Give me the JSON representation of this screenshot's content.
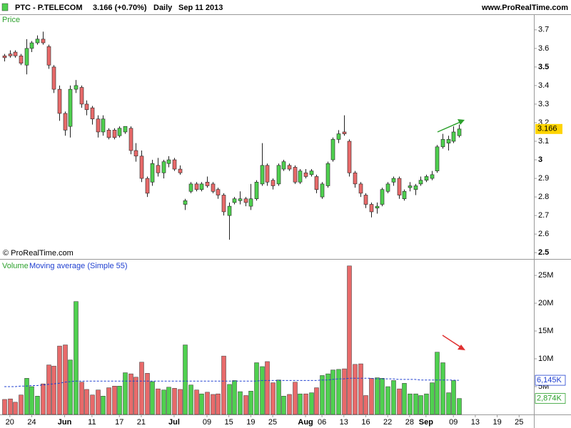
{
  "header": {
    "symbol": "PTC - P.TELECOM",
    "quote": "3.166 (+0.70%)",
    "period": "Daily",
    "date": "Sep 11 2013",
    "site": "www.ProRealTime.com"
  },
  "chart_data": [
    {
      "type": "candlestick",
      "title": "Price",
      "credit": "© ProRealTime.com",
      "up_color": "#4fd04f",
      "down_color": "#e86a6a",
      "xlim": [
        -0.8,
        96.7
      ],
      "xticks": [
        {
          "value": 1,
          "label": "20"
        },
        {
          "value": 5,
          "label": "24"
        },
        {
          "value": 11,
          "label": "Jun"
        },
        {
          "value": 16,
          "label": "11"
        },
        {
          "value": 21,
          "label": "17"
        },
        {
          "value": 25,
          "label": "21"
        },
        {
          "value": 31,
          "label": "Jul"
        },
        {
          "value": 37,
          "label": "09"
        },
        {
          "value": 41,
          "label": "15"
        },
        {
          "value": 45,
          "label": "19"
        },
        {
          "value": 49,
          "label": "25"
        },
        {
          "value": 55,
          "label": "Aug"
        },
        {
          "value": 58,
          "label": "06"
        },
        {
          "value": 62,
          "label": "13"
        },
        {
          "value": 66,
          "label": "16"
        },
        {
          "value": 70,
          "label": "22"
        },
        {
          "value": 74,
          "label": "28"
        },
        {
          "value": 77,
          "label": "Sep"
        },
        {
          "value": 82,
          "label": "09"
        },
        {
          "value": 86,
          "label": "13"
        },
        {
          "value": 90,
          "label": "19"
        },
        {
          "value": 94,
          "label": "25"
        }
      ],
      "ylim": [
        2.47,
        3.78
      ],
      "yticks": [
        2.5,
        2.6,
        2.7,
        2.8,
        2.9,
        3,
        3.1,
        3.2,
        3.3,
        3.4,
        3.5,
        3.6,
        3.7
      ],
      "open": [
        3.56,
        3.57,
        3.58,
        3.56,
        3.51,
        3.6,
        3.63,
        3.65,
        3.61,
        3.5,
        3.38,
        3.25,
        3.18,
        3.38,
        3.39,
        3.3,
        3.28,
        3.22,
        3.15,
        3.16,
        3.16,
        3.13,
        3.15,
        3.17,
        3.05,
        3.02,
        2.9,
        2.88,
        2.97,
        2.93,
        2.98,
        3.0,
        2.95,
        2.76,
        2.83,
        2.87,
        2.84,
        2.88,
        2.87,
        2.84,
        2.81,
        2.7,
        2.77,
        2.78,
        2.79,
        2.75,
        2.79,
        2.87,
        2.97,
        2.89,
        2.87,
        2.95,
        2.97,
        2.96,
        2.88,
        2.93,
        2.92,
        2.91,
        2.8,
        2.86,
        3.0,
        3.11,
        3.15,
        3.1,
        2.93,
        2.87,
        2.81,
        2.76,
        2.74,
        2.76,
        2.83,
        2.88,
        2.9,
        2.79,
        2.85,
        2.84,
        2.87,
        2.89,
        2.9,
        2.94,
        3.07,
        3.09,
        3.1,
        3.13
      ],
      "high": [
        3.57,
        3.59,
        3.59,
        3.57,
        3.65,
        3.64,
        3.67,
        3.69,
        3.62,
        3.51,
        3.4,
        3.26,
        3.4,
        3.43,
        3.4,
        3.32,
        3.29,
        3.24,
        3.24,
        3.17,
        3.17,
        3.18,
        3.18,
        3.18,
        3.09,
        3.05,
        2.91,
        3.0,
        3.01,
        3.0,
        3.02,
        3.01,
        2.97,
        2.79,
        2.88,
        2.88,
        2.88,
        2.91,
        2.88,
        2.85,
        2.82,
        2.77,
        2.8,
        2.83,
        2.8,
        2.87,
        2.89,
        3.09,
        2.98,
        2.9,
        2.98,
        3.0,
        2.98,
        2.97,
        2.95,
        2.95,
        2.95,
        2.92,
        2.88,
        2.99,
        3.12,
        3.16,
        3.24,
        3.11,
        2.94,
        2.88,
        2.82,
        2.77,
        2.77,
        2.85,
        2.88,
        2.91,
        2.91,
        2.84,
        2.88,
        2.87,
        2.91,
        2.92,
        2.94,
        3.08,
        3.14,
        3.13,
        3.18,
        3.19
      ],
      "low": [
        3.53,
        3.55,
        3.55,
        3.51,
        3.46,
        3.58,
        3.62,
        3.62,
        3.49,
        3.36,
        3.21,
        3.13,
        3.12,
        3.36,
        3.28,
        3.24,
        3.19,
        3.12,
        3.13,
        3.11,
        3.11,
        3.12,
        3.14,
        3.03,
        2.99,
        2.88,
        2.8,
        2.86,
        2.91,
        2.9,
        2.96,
        2.94,
        2.92,
        2.73,
        2.82,
        2.83,
        2.83,
        2.85,
        2.82,
        2.79,
        2.7,
        2.57,
        2.76,
        2.76,
        2.75,
        2.73,
        2.78,
        2.86,
        2.86,
        2.84,
        2.86,
        2.94,
        2.94,
        2.87,
        2.87,
        2.9,
        2.91,
        2.82,
        2.79,
        2.85,
        2.99,
        3.09,
        3.13,
        2.91,
        2.85,
        2.8,
        2.74,
        2.69,
        2.71,
        2.75,
        2.82,
        2.86,
        2.79,
        2.78,
        2.83,
        2.81,
        2.86,
        2.88,
        2.89,
        2.93,
        3.06,
        3.05,
        3.09,
        3.12
      ],
      "close": [
        3.55,
        3.56,
        3.56,
        3.52,
        3.6,
        3.63,
        3.65,
        3.63,
        3.51,
        3.38,
        3.25,
        3.16,
        3.38,
        3.4,
        3.3,
        3.27,
        3.22,
        3.15,
        3.22,
        3.12,
        3.12,
        3.17,
        3.18,
        3.05,
        3.02,
        2.9,
        2.82,
        2.98,
        2.93,
        2.99,
        3.0,
        2.95,
        2.93,
        2.78,
        2.87,
        2.84,
        2.87,
        2.86,
        2.83,
        2.81,
        2.72,
        2.75,
        2.79,
        2.79,
        2.77,
        2.79,
        2.88,
        2.97,
        2.88,
        2.86,
        2.97,
        2.99,
        2.95,
        2.88,
        2.94,
        2.91,
        2.94,
        2.84,
        2.87,
        2.98,
        3.11,
        3.14,
        3.14,
        2.93,
        2.87,
        2.82,
        2.76,
        2.72,
        2.75,
        2.84,
        2.87,
        2.9,
        2.81,
        2.83,
        2.86,
        2.86,
        2.89,
        2.91,
        2.92,
        3.07,
        3.11,
        3.11,
        3.15,
        3.166
      ]
    },
    {
      "type": "bar",
      "title": "Volume",
      "subtitle": "Moving average (Simple 55)",
      "xlim": [
        -0.8,
        96.7
      ],
      "ylim": [
        0,
        27.7
      ],
      "yticks": [
        {
          "value": 5,
          "label": "5M"
        },
        {
          "value": 10,
          "label": "10M"
        },
        {
          "value": 15,
          "label": "15M"
        },
        {
          "value": 20,
          "label": "20M"
        },
        {
          "value": 25,
          "label": "25M"
        }
      ],
      "series": [
        {
          "name": "Volume",
          "color": "#4fd04f",
          "label_color": "#2ca02c",
          "values": [
            2.7,
            2.8,
            2.2,
            3.5,
            6.5,
            5.0,
            3.3,
            5.5,
            8.9,
            8.7,
            12.3,
            12.5,
            9.8,
            20.3,
            5.8,
            4.5,
            3.5,
            4.4,
            3.3,
            4.8,
            5.1,
            5.1,
            7.5,
            7.3,
            6.7,
            9.4,
            7.4,
            5.9,
            4.6,
            4.4,
            4.9,
            4.7,
            4.5,
            12.5,
            5.3,
            4.4,
            3.7,
            4.0,
            3.6,
            3.7,
            10.5,
            5.4,
            6.1,
            4.1,
            3.4,
            4.2,
            9.3,
            8.6,
            9.5,
            5.7,
            6.2,
            3.3,
            3.6,
            5.8,
            3.7,
            3.7,
            3.9,
            4.8,
            7.0,
            7.3,
            8.0,
            8.1,
            8.2,
            26.7,
            9.0,
            9.1,
            3.4,
            6.5,
            6.6,
            6.5,
            5.0,
            6.1,
            4.6,
            5.6,
            3.7,
            3.7,
            3.4,
            3.7,
            5.7,
            11.2,
            9.3,
            3.9,
            6.1,
            2.874
          ],
          "last_label": "2,874K"
        },
        {
          "name": "Moving average (Simple 55)",
          "color": "#1f3fd0",
          "type": "line",
          "values": [
            5.0,
            5.0,
            5.0,
            5.1,
            5.1,
            5.2,
            5.2,
            5.3,
            5.4,
            5.5,
            5.6,
            5.8,
            5.9,
            6.0,
            6.0,
            6.0,
            6.0,
            6.0,
            6.0,
            6.0,
            6.0,
            6.0,
            6.0,
            6.0,
            6.0,
            6.0,
            6.0,
            6.0,
            6.0,
            6.0,
            6.0,
            6.0,
            6.0,
            6.0,
            6.0,
            6.0,
            6.0,
            6.0,
            6.0,
            6.0,
            6.0,
            6.0,
            6.0,
            6.0,
            6.0,
            6.0,
            6.0,
            6.1,
            6.1,
            6.1,
            6.1,
            6.1,
            6.1,
            6.1,
            6.1,
            6.1,
            6.1,
            6.1,
            6.2,
            6.2,
            6.3,
            6.4,
            6.4,
            6.5,
            6.5,
            6.5,
            6.5,
            6.5,
            6.4,
            6.4,
            6.4,
            6.4,
            6.3,
            6.3,
            6.3,
            6.3,
            6.2,
            6.2,
            6.2,
            6.2,
            6.2,
            6.2,
            6.15,
            6.145
          ],
          "last_label": "6,145K"
        }
      ]
    }
  ]
}
